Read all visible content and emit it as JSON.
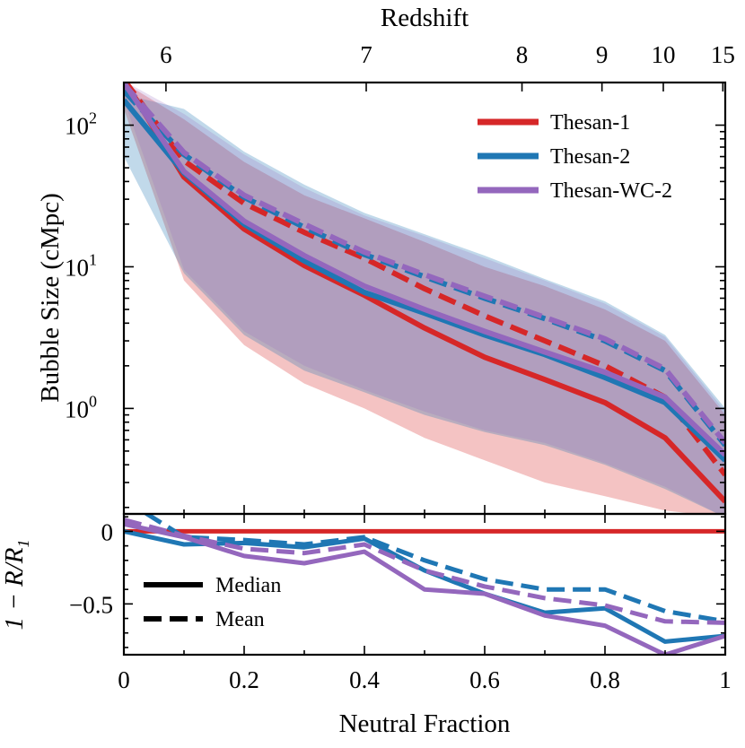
{
  "chart_data": [
    {
      "type": "line",
      "panel": "top",
      "ylabel": "Bubble Size (cMpc)",
      "yscale": "log",
      "ylim": [
        0.18,
        200
      ],
      "xlim": [
        0,
        1
      ],
      "yticks": [
        1,
        10,
        100
      ],
      "ytick_labels": [
        {
          "base": "10",
          "exp": "0"
        },
        {
          "base": "10",
          "exp": "1"
        },
        {
          "base": "10",
          "exp": "2"
        }
      ],
      "top_axis": {
        "label": "Redshift",
        "ticks": [
          {
            "label": "6",
            "x": 0.07
          },
          {
            "label": "7",
            "x": 0.403
          },
          {
            "label": "8",
            "x": 0.662
          },
          {
            "label": "9",
            "x": 0.795
          },
          {
            "label": "10",
            "x": 0.897
          },
          {
            "label": "15",
            "x": 0.996
          }
        ]
      },
      "x": [
        0,
        0.1,
        0.2,
        0.3,
        0.4,
        0.5,
        0.6,
        0.7,
        0.8,
        0.9,
        1.0
      ],
      "series": [
        {
          "name": "Thesan-1",
          "color": "#d62728",
          "stat": "median",
          "values": [
            210,
            43,
            18.5,
            10.2,
            6.3,
            3.7,
            2.3,
            1.6,
            1.1,
            0.62,
            0.22
          ]
        },
        {
          "name": "Thesan-1",
          "color": "#d62728",
          "stat": "mean",
          "values": [
            210,
            56,
            28,
            17.5,
            11.5,
            7.0,
            4.5,
            3.0,
            2.0,
            1.2,
            0.34
          ]
        },
        {
          "name": "Thesan-2",
          "color": "#1f77b4",
          "stat": "median",
          "values": [
            150,
            46,
            20,
            11,
            6.6,
            4.7,
            3.3,
            2.4,
            1.65,
            1.1,
            0.43
          ]
        },
        {
          "name": "Thesan-2",
          "color": "#1f77b4",
          "stat": "mean",
          "values": [
            175,
            62,
            31,
            19,
            12.2,
            8.5,
            6.0,
            4.3,
            3.0,
            1.85,
            0.55
          ]
        },
        {
          "name": "Thesan-WC-2",
          "color": "#9467bd",
          "stat": "median",
          "values": [
            200,
            47,
            21,
            12,
            7.3,
            5.0,
            3.5,
            2.5,
            1.8,
            1.2,
            0.47
          ]
        },
        {
          "name": "Thesan-WC-2",
          "color": "#9467bd",
          "stat": "mean",
          "values": [
            195,
            64,
            32,
            20,
            12.7,
            8.8,
            6.2,
            4.4,
            3.1,
            1.9,
            0.57
          ]
        }
      ],
      "bands": [
        {
          "name": "Thesan-1",
          "color": "#d62728",
          "opacity": 0.28,
          "lower": [
            130,
            8.0,
            2.8,
            1.5,
            1.0,
            0.62,
            0.43,
            0.3,
            0.24,
            0.19,
            0.17
          ],
          "upper": [
            200,
            110,
            55,
            32,
            22,
            15,
            10,
            7.3,
            5.0,
            3.0,
            0.9
          ]
        },
        {
          "name": "Thesan-2",
          "color": "#1f77b4",
          "opacity": 0.28,
          "lower": [
            60,
            9.0,
            3.3,
            1.85,
            1.3,
            0.9,
            0.68,
            0.55,
            0.4,
            0.27,
            0.17
          ],
          "upper": [
            165,
            130,
            65,
            38,
            24,
            17,
            12,
            8.2,
            5.7,
            3.3,
            1.0
          ]
        },
        {
          "name": "Thesan-WC-2",
          "color": "#9467bd",
          "opacity": 0.22,
          "lower": [
            150,
            9.5,
            3.5,
            2.0,
            1.35,
            0.95,
            0.7,
            0.57,
            0.41,
            0.28,
            0.17
          ],
          "upper": [
            205,
            120,
            62,
            36,
            23,
            16.5,
            11.5,
            8.0,
            5.5,
            3.2,
            0.95
          ]
        }
      ],
      "legend": {
        "placement": "top-right",
        "entries": [
          {
            "label": "Thesan-1",
            "color": "#d62728"
          },
          {
            "label": "Thesan-2",
            "color": "#1f77b4"
          },
          {
            "label": "Thesan-WC-2",
            "color": "#9467bd"
          }
        ]
      }
    },
    {
      "type": "line",
      "panel": "bottom",
      "ylabel": "1 − R/R",
      "ylabel_sub": "1",
      "xlabel": "Neutral Fraction",
      "xlim": [
        0,
        1
      ],
      "ylim": [
        -0.85,
        0.12
      ],
      "xticks": [
        0,
        0.2,
        0.4,
        0.6,
        0.8,
        1
      ],
      "xtick_labels": [
        "0",
        "0.2",
        "0.4",
        "0.6",
        "0.8",
        "1"
      ],
      "yticks": [
        0,
        -0.5
      ],
      "ytick_labels": [
        "0",
        "−0.5"
      ],
      "x": [
        0,
        0.1,
        0.2,
        0.3,
        0.4,
        0.5,
        0.6,
        0.7,
        0.8,
        0.9,
        1.0
      ],
      "series": [
        {
          "name": "Thesan-1",
          "color": "#d62728",
          "stat": "median",
          "values": [
            0,
            0,
            0,
            0,
            0,
            0,
            0,
            0,
            0,
            0,
            0
          ]
        },
        {
          "name": "Thesan-2",
          "color": "#1f77b4",
          "stat": "median",
          "values": [
            0,
            -0.09,
            -0.08,
            -0.11,
            -0.05,
            -0.27,
            -0.43,
            -0.56,
            -0.53,
            -0.76,
            -0.72
          ]
        },
        {
          "name": "Thesan-2",
          "color": "#1f77b4",
          "stat": "mean",
          "values": [
            0.22,
            -0.04,
            -0.06,
            -0.09,
            -0.04,
            -0.2,
            -0.33,
            -0.4,
            -0.4,
            -0.55,
            -0.62
          ]
        },
        {
          "name": "Thesan-WC-2",
          "color": "#9467bd",
          "stat": "median",
          "values": [
            0.05,
            -0.04,
            -0.17,
            -0.22,
            -0.14,
            -0.4,
            -0.43,
            -0.58,
            -0.65,
            -0.85,
            -0.72
          ]
        },
        {
          "name": "Thesan-WC-2",
          "color": "#9467bd",
          "stat": "mean",
          "values": [
            0.08,
            -0.03,
            -0.12,
            -0.15,
            -0.09,
            -0.27,
            -0.38,
            -0.46,
            -0.51,
            -0.62,
            -0.63
          ]
        }
      ],
      "legend": {
        "placement": "bottom-left",
        "entries": [
          {
            "label": "Median",
            "style": "solid"
          },
          {
            "label": "Mean",
            "style": "dashed"
          }
        ]
      }
    }
  ]
}
